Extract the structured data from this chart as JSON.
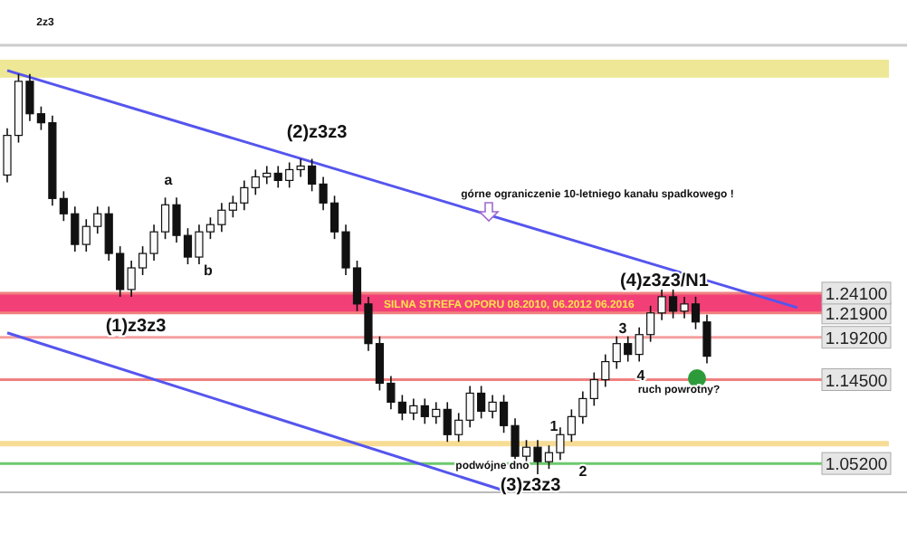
{
  "chart_data": {
    "type": "candlestick",
    "ylim": [
      1.02,
      1.516
    ],
    "tick_labels": "y",
    "yticks": [
      {
        "value": 1.052,
        "label": "1.05200"
      },
      {
        "value": 1.145,
        "label": "1.14500"
      },
      {
        "value": 1.192,
        "label": "1.19200"
      },
      {
        "value": 1.219,
        "label": "1.21900"
      },
      {
        "value": 1.241,
        "label": "1.24100"
      }
    ],
    "categories": [
      null,
      null,
      null,
      null,
      null,
      null,
      null,
      null,
      null,
      null,
      null,
      null,
      null,
      null,
      null,
      null,
      null,
      null,
      null,
      null,
      null,
      null,
      null,
      null,
      null,
      null,
      null,
      null,
      null,
      null,
      null,
      null,
      null,
      null,
      null,
      null,
      null,
      null,
      null,
      null,
      null,
      null,
      null,
      null,
      null,
      null,
      null,
      null,
      null,
      null,
      null,
      null,
      null,
      null,
      null,
      null,
      null,
      null,
      null,
      null,
      null,
      null,
      null,
      null,
      null,
      null,
      null,
      null,
      null,
      null,
      null,
      null,
      null,
      null,
      null,
      null,
      null,
      null
    ],
    "ohlc": [
      [
        1.372,
        1.424,
        1.364,
        1.416
      ],
      [
        1.416,
        1.484,
        1.408,
        1.476
      ],
      [
        1.476,
        1.484,
        1.432,
        1.44
      ],
      [
        1.44,
        1.448,
        1.422,
        1.43
      ],
      [
        1.43,
        1.438,
        1.338,
        1.346
      ],
      [
        1.346,
        1.354,
        1.321,
        1.329
      ],
      [
        1.329,
        1.337,
        1.287,
        1.295
      ],
      [
        1.295,
        1.323,
        1.287,
        1.315
      ],
      [
        1.315,
        1.337,
        1.307,
        1.329
      ],
      [
        1.329,
        1.337,
        1.277,
        1.285
      ],
      [
        1.285,
        1.293,
        1.237,
        1.245
      ],
      [
        1.245,
        1.277,
        1.237,
        1.269
      ],
      [
        1.269,
        1.293,
        1.261,
        1.285
      ],
      [
        1.285,
        1.317,
        1.277,
        1.309
      ],
      [
        1.309,
        1.347,
        1.301,
        1.339
      ],
      [
        1.339,
        1.347,
        1.297,
        1.305
      ],
      [
        1.305,
        1.313,
        1.273,
        1.281
      ],
      [
        1.281,
        1.317,
        1.273,
        1.309
      ],
      [
        1.309,
        1.325,
        1.301,
        1.317
      ],
      [
        1.317,
        1.341,
        1.309,
        1.333
      ],
      [
        1.333,
        1.349,
        1.325,
        1.341
      ],
      [
        1.341,
        1.366,
        1.333,
        1.358
      ],
      [
        1.358,
        1.378,
        1.35,
        1.37
      ],
      [
        1.37,
        1.382,
        1.362,
        1.374
      ],
      [
        1.374,
        1.382,
        1.358,
        1.366
      ],
      [
        1.366,
        1.386,
        1.358,
        1.378
      ],
      [
        1.378,
        1.39,
        1.37,
        1.382
      ],
      [
        1.382,
        1.39,
        1.354,
        1.362
      ],
      [
        1.362,
        1.37,
        1.333,
        1.341
      ],
      [
        1.341,
        1.349,
        1.301,
        1.309
      ],
      [
        1.309,
        1.317,
        1.261,
        1.269
      ],
      [
        1.269,
        1.277,
        1.221,
        1.229
      ],
      [
        1.229,
        1.237,
        1.177,
        1.185
      ],
      [
        1.185,
        1.193,
        1.133,
        1.141
      ],
      [
        1.141,
        1.149,
        1.112,
        1.12
      ],
      [
        1.12,
        1.128,
        1.1,
        1.108
      ],
      [
        1.108,
        1.124,
        1.1,
        1.116
      ],
      [
        1.116,
        1.124,
        1.096,
        1.104
      ],
      [
        1.104,
        1.12,
        1.096,
        1.112
      ],
      [
        1.112,
        1.12,
        1.076,
        1.084
      ],
      [
        1.084,
        1.108,
        1.076,
        1.1
      ],
      [
        1.1,
        1.138,
        1.092,
        1.13
      ],
      [
        1.13,
        1.138,
        1.102,
        1.11
      ],
      [
        1.11,
        1.128,
        1.102,
        1.12
      ],
      [
        1.12,
        1.128,
        1.086,
        1.094
      ],
      [
        1.094,
        1.102,
        1.052,
        1.06
      ],
      [
        1.06,
        1.078,
        1.052,
        1.07
      ],
      [
        1.07,
        1.078,
        1.04,
        1.054
      ],
      [
        1.054,
        1.072,
        1.046,
        1.064
      ],
      [
        1.064,
        1.092,
        1.056,
        1.084
      ],
      [
        1.084,
        1.112,
        1.076,
        1.104
      ],
      [
        1.104,
        1.132,
        1.096,
        1.124
      ],
      [
        1.124,
        1.153,
        1.116,
        1.145
      ],
      [
        1.145,
        1.173,
        1.137,
        1.165
      ],
      [
        1.165,
        1.193,
        1.157,
        1.185
      ],
      [
        1.185,
        1.193,
        1.165,
        1.173
      ],
      [
        1.173,
        1.203,
        1.165,
        1.195
      ],
      [
        1.195,
        1.227,
        1.187,
        1.219
      ],
      [
        1.219,
        1.245,
        1.211,
        1.237
      ],
      [
        1.237,
        1.245,
        1.213,
        1.221
      ],
      [
        1.221,
        1.237,
        1.213,
        1.229
      ],
      [
        1.229,
        1.237,
        1.201,
        1.209
      ],
      [
        1.209,
        1.217,
        1.163,
        1.171
      ],
      null,
      null,
      null,
      null,
      null,
      null,
      null,
      null,
      null,
      null,
      null,
      null,
      null,
      null,
      null
    ],
    "series": [
      {
        "type": "line",
        "color": "#5555ee",
        "values": [
          1.488,
          null,
          null,
          null,
          null,
          null,
          null,
          null,
          null,
          null,
          null,
          null,
          null,
          null,
          null,
          null,
          null,
          null,
          null,
          null,
          null,
          null,
          null,
          null,
          null,
          null,
          null,
          null,
          null,
          null,
          null,
          null,
          null,
          null,
          null,
          null,
          null,
          null,
          null,
          null,
          null,
          null,
          null,
          null,
          null,
          null,
          null,
          null,
          null,
          null,
          null,
          null,
          null,
          null,
          null,
          null,
          null,
          null,
          null,
          null,
          null,
          null,
          null,
          null,
          null,
          null,
          null,
          null,
          null,
          null,
          1.225,
          null,
          null,
          null,
          null,
          null,
          null,
          null
        ]
      },
      {
        "type": "line",
        "color": "#5555ee",
        "values": [
          1.197,
          null,
          null,
          null,
          null,
          null,
          null,
          null,
          null,
          null,
          null,
          null,
          null,
          null,
          null,
          null,
          null,
          null,
          null,
          null,
          null,
          null,
          null,
          null,
          null,
          null,
          null,
          null,
          null,
          null,
          null,
          null,
          null,
          null,
          null,
          null,
          null,
          null,
          null,
          null,
          null,
          null,
          null,
          null,
          1.022,
          null,
          null,
          null,
          null,
          null,
          null,
          null,
          null,
          null,
          null,
          null,
          null,
          null,
          null,
          null,
          null,
          null,
          null,
          null,
          null,
          null,
          null,
          null,
          null,
          null,
          null,
          null,
          null,
          null,
          null,
          null,
          null,
          null
        ]
      }
    ],
    "bands": [
      {
        "axis": "y",
        "from": 1.48,
        "to": 1.5,
        "color": "#ece48a"
      },
      {
        "axis": "y",
        "from": 1.219,
        "to": 1.241,
        "color": "#f22a68",
        "label": "SILNA STREFA OPORU 08.2010, 06.2012 06.2016"
      },
      {
        "axis": "y",
        "from": 1.071,
        "to": 1.077,
        "color": "#f6d88a"
      }
    ],
    "ref_lines": [
      {
        "axis": "y",
        "value": 1.241,
        "color": "#f08080"
      },
      {
        "axis": "y",
        "value": 1.219,
        "color": "#f08080"
      },
      {
        "axis": "y",
        "value": 1.192,
        "color": "#f5a0a0"
      },
      {
        "axis": "y",
        "value": 1.145,
        "color": "#f08080"
      },
      {
        "axis": "y",
        "value": 1.052,
        "color": "#6cc96c"
      }
    ],
    "annotations": [
      "2z3",
      "(2)z3z3",
      "a",
      "b",
      "(1)z3z3",
      "górne ograniczenie 10-letniego kanału spadkowego !",
      "(4)z3z3/N1",
      "ruch powrotny?",
      "podwójne dno",
      "(3)z3z3",
      "3",
      "4",
      "1",
      "2"
    ]
  }
}
